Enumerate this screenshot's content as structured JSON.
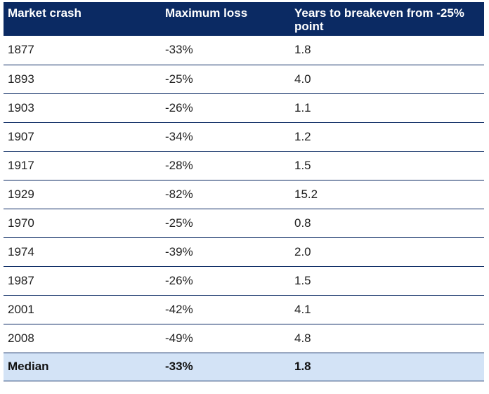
{
  "chart_data": {
    "type": "table",
    "columns": [
      "Market crash",
      "Maximum loss",
      "Years to breakeven from -25% point"
    ],
    "rows": [
      {
        "market_crash": "1877",
        "maximum_loss": "-33%",
        "years_to_breakeven": "1.8"
      },
      {
        "market_crash": "1893",
        "maximum_loss": "-25%",
        "years_to_breakeven": "4.0"
      },
      {
        "market_crash": "1903",
        "maximum_loss": "-26%",
        "years_to_breakeven": "1.1"
      },
      {
        "market_crash": "1907",
        "maximum_loss": "-34%",
        "years_to_breakeven": "1.2"
      },
      {
        "market_crash": "1917",
        "maximum_loss": "-28%",
        "years_to_breakeven": "1.5"
      },
      {
        "market_crash": "1929",
        "maximum_loss": "-82%",
        "years_to_breakeven": "15.2"
      },
      {
        "market_crash": "1970",
        "maximum_loss": "-25%",
        "years_to_breakeven": "0.8"
      },
      {
        "market_crash": "1974",
        "maximum_loss": "-39%",
        "years_to_breakeven": "2.0"
      },
      {
        "market_crash": "1987",
        "maximum_loss": "-26%",
        "years_to_breakeven": "1.5"
      },
      {
        "market_crash": "2001",
        "maximum_loss": "-42%",
        "years_to_breakeven": "4.1"
      },
      {
        "market_crash": "2008",
        "maximum_loss": "-49%",
        "years_to_breakeven": "4.8"
      }
    ],
    "summary_row": {
      "market_crash": "Median",
      "maximum_loss": "-33%",
      "years_to_breakeven": "1.8"
    },
    "colors": {
      "header_background": "#0b2a63",
      "header_text": "#ffffff",
      "median_background": "#d3e3f6",
      "row_divider": "#0b2a63"
    }
  }
}
